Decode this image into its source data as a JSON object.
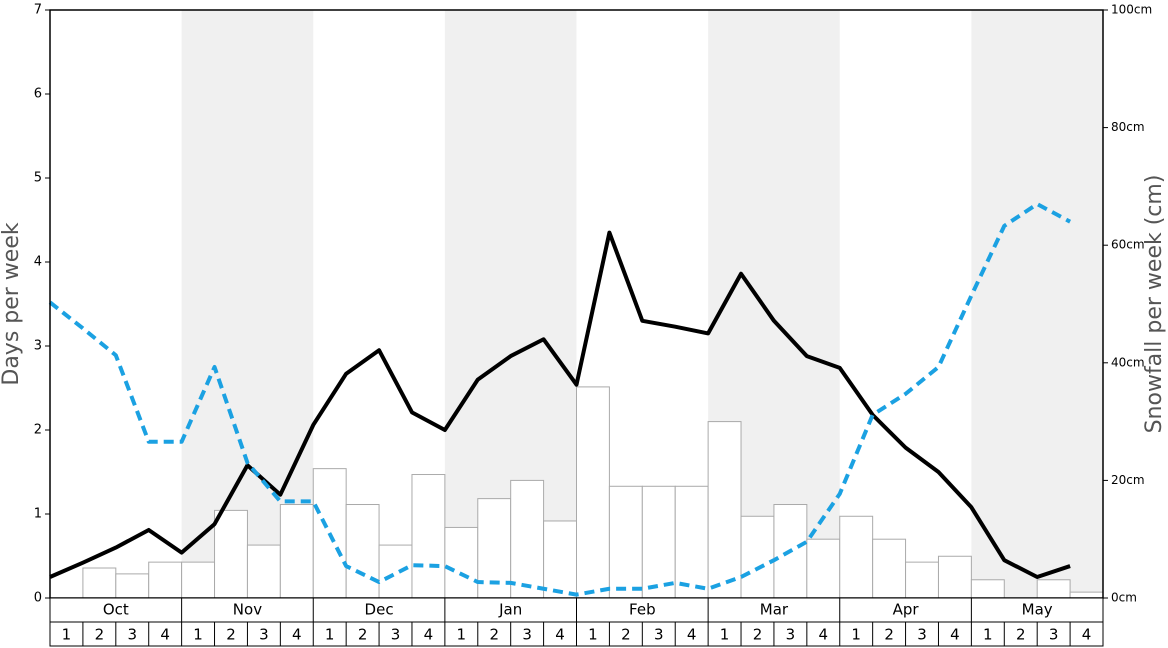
{
  "chart_data": {
    "type": "bar-line",
    "y_label": "Days per week",
    "y2_label": "Snowfall per week (cm)",
    "months": [
      "Oct",
      "Nov",
      "Dec",
      "Jan",
      "Feb",
      "Mar",
      "Apr",
      "May"
    ],
    "categories": [
      "1",
      "2",
      "3",
      "4",
      "1",
      "2",
      "3",
      "4",
      "1",
      "2",
      "3",
      "4",
      "1",
      "2",
      "3",
      "4",
      "1",
      "2",
      "3",
      "4",
      "1",
      "2",
      "3",
      "4",
      "1",
      "2",
      "3",
      "4",
      "1",
      "2",
      "3",
      "4"
    ],
    "ylim": [
      0,
      7
    ],
    "yticks": [
      0,
      1,
      2,
      3,
      4,
      5,
      6,
      7
    ],
    "y2lim": [
      0,
      100
    ],
    "y2ticks": [
      {
        "value": 0,
        "label": "0cm"
      },
      {
        "value": 20,
        "label": "20cm"
      },
      {
        "value": 40,
        "label": "40cm"
      },
      {
        "value": 60,
        "label": "60cm"
      },
      {
        "value": 80,
        "label": "80cm"
      },
      {
        "value": 100,
        "label": "100cm"
      }
    ],
    "shade_color": "#f0f0f0",
    "series": [
      {
        "kind": "bar",
        "axis": "y2",
        "color": "#ffffff",
        "stroke": "#aaaaaa",
        "values": [
          0,
          5.1,
          4.1,
          6.1,
          6.1,
          14.9,
          9.0,
          15.9,
          22.0,
          15.9,
          9.0,
          21.0,
          12.0,
          16.9,
          20.0,
          13.1,
          35.9,
          19.0,
          19.0,
          19.0,
          30.0,
          13.9,
          15.9,
          10.0,
          13.9,
          10.0,
          6.1,
          7.1,
          3.1,
          0,
          3.1,
          1.0
        ]
      },
      {
        "kind": "line",
        "color": "#000000",
        "dashed": false,
        "values": [
          0.25,
          0.42,
          0.6,
          0.81,
          0.54,
          0.88,
          1.58,
          1.23,
          2.06,
          2.67,
          2.95,
          2.21,
          2.0,
          2.6,
          2.88,
          3.08,
          2.54,
          4.35,
          3.3,
          3.23,
          3.15,
          3.86,
          3.3,
          2.88,
          2.74,
          2.18,
          1.79,
          1.5,
          1.08,
          0.45,
          0.25,
          0.38
        ]
      },
      {
        "kind": "line",
        "color": "#1ba1e2",
        "dashed": true,
        "values": [
          3.52,
          3.21,
          2.89,
          1.86,
          1.86,
          2.75,
          1.61,
          1.15,
          1.15,
          0.38,
          0.19,
          0.39,
          0.38,
          0.19,
          0.18,
          0.11,
          0.04,
          0.11,
          0.11,
          0.18,
          0.11,
          0.25,
          0.45,
          0.67,
          1.24,
          2.18,
          2.43,
          2.75,
          3.6,
          4.43,
          4.69,
          4.48
        ]
      }
    ]
  }
}
